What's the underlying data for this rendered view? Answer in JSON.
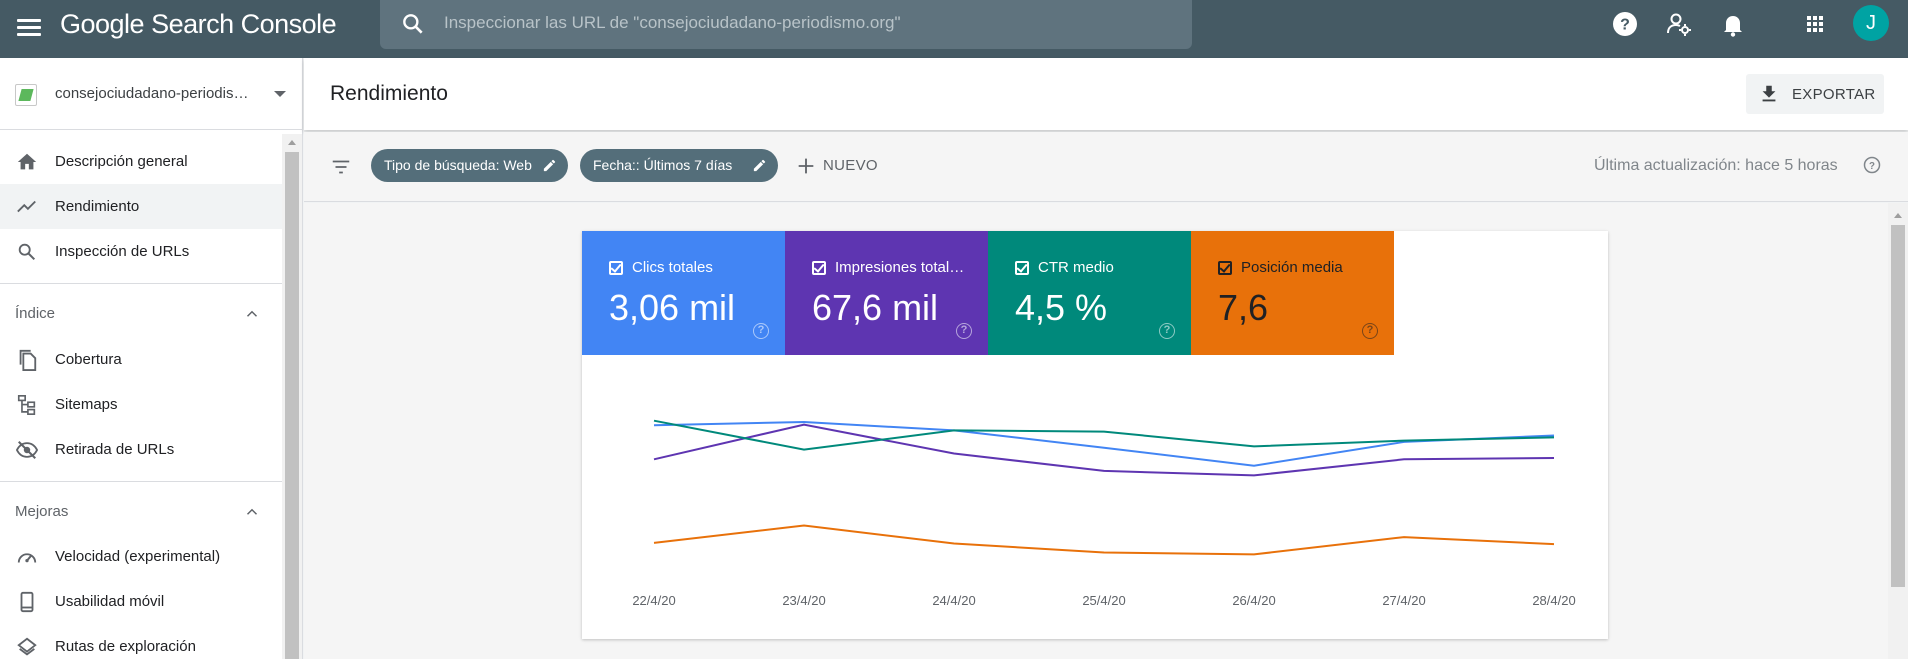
{
  "app": {
    "title": "Google Search Console"
  },
  "search": {
    "placeholder": "Inspeccionar las URL de \"consejociudadano-periodismo.org\""
  },
  "user": {
    "avatar_letter": "J",
    "avatar_color": "#00a3a3"
  },
  "sidebar": {
    "property": "consejociudadano-periodismo.org",
    "items": [
      {
        "label": "Descripción general",
        "icon": "home-icon"
      },
      {
        "label": "Rendimiento",
        "icon": "trending-up-icon",
        "active": true
      },
      {
        "label": "Inspección de URLs",
        "icon": "search-icon"
      }
    ],
    "sections": [
      {
        "title": "Índice",
        "items": [
          {
            "label": "Cobertura",
            "icon": "file-copy-icon"
          },
          {
            "label": "Sitemaps",
            "icon": "sitemap-icon"
          },
          {
            "label": "Retirada de URLs",
            "icon": "visibility-off-icon"
          }
        ]
      },
      {
        "title": "Mejoras",
        "items": [
          {
            "label": "Velocidad (experimental)",
            "icon": "speed-icon"
          },
          {
            "label": "Usabilidad móvil",
            "icon": "smartphone-icon"
          },
          {
            "label": "Rutas de exploración",
            "icon": "layers-icon"
          }
        ]
      }
    ]
  },
  "page": {
    "title": "Rendimiento",
    "export_label": "EXPORTAR"
  },
  "filters": {
    "chips": [
      {
        "label": "Tipo de búsqueda: Web"
      },
      {
        "label": "Fecha:: Últimos 7 días"
      }
    ],
    "new_label": "NUEVO",
    "last_update": "Última actualización: hace 5 horas"
  },
  "metrics": [
    {
      "label": "Clics totales",
      "value": "3,06 mil",
      "color": "#4285f4",
      "checked": true
    },
    {
      "label": "Impresiones total…",
      "value": "67,6 mil",
      "color": "#5e35b1",
      "checked": true
    },
    {
      "label": "CTR medio",
      "value": "4,5 %",
      "color": "#00897b",
      "checked": true
    },
    {
      "label": "Posición media",
      "value": "7,6",
      "color": "#e8710a",
      "checked": true
    }
  ],
  "chart_data": {
    "type": "line",
    "x": [
      "22/4/20",
      "23/4/20",
      "24/4/20",
      "25/4/20",
      "26/4/20",
      "27/4/20",
      "28/4/20"
    ],
    "series": [
      {
        "name": "Clics totales",
        "color": "#4285f4",
        "values": [
          0.53,
          0.58,
          0.45,
          0.18,
          -0.1,
          0.27,
          0.37
        ]
      },
      {
        "name": "Impresiones totales",
        "color": "#5e35b1",
        "values": [
          0.0,
          0.54,
          0.09,
          -0.18,
          -0.25,
          0.0,
          0.02
        ]
      },
      {
        "name": "CTR medio",
        "color": "#00897b",
        "values": [
          0.6,
          0.15,
          0.45,
          0.43,
          0.2,
          0.29,
          0.34
        ]
      },
      {
        "name": "Posición media",
        "color": "#e8710a",
        "values": [
          -1.3,
          -1.03,
          -1.31,
          -1.45,
          -1.48,
          -1.21,
          -1.32
        ]
      }
    ],
    "ylim": [
      -1.8,
      1.0
    ],
    "grid": false,
    "legend": "none"
  }
}
